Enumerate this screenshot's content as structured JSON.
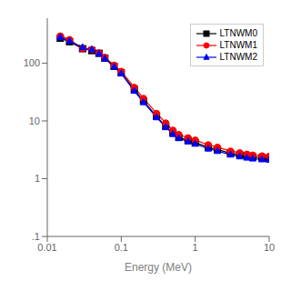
{
  "chart_data": {
    "type": "line",
    "x_label": "Energy (MeV)",
    "log": true,
    "grid": false,
    "legend": "upper right",
    "xlim": [
      0.01,
      10
    ],
    "ylim": [
      0.1,
      600
    ],
    "xticks": [
      0.01,
      0.1,
      1,
      10
    ],
    "yticks": [
      {
        "value": 0.1,
        "label": ".1"
      },
      1,
      10,
      100
    ],
    "x": [
      0.015,
      0.02,
      0.03,
      0.04,
      0.05,
      0.06,
      0.08,
      0.1,
      0.15,
      0.2,
      0.3,
      0.4,
      0.5,
      0.6,
      0.8,
      1.0,
      1.5,
      2.0,
      3.0,
      4.0,
      5.0,
      6.0,
      8.0,
      10.0
    ],
    "series": [
      {
        "name": "LTNWM0",
        "color": "black",
        "marker": "square",
        "line_style": "solid",
        "values": [
          270,
          235,
          178,
          165,
          148,
          122,
          88,
          68,
          35,
          22,
          12,
          8.0,
          6.2,
          5.2,
          4.6,
          4.2,
          3.5,
          3.2,
          2.75,
          2.58,
          2.45,
          2.38,
          2.3,
          2.27
        ]
      },
      {
        "name": "LTNWM1",
        "color": "red",
        "marker": "circle",
        "line_style": "solid",
        "values": [
          295,
          255,
          178,
          172,
          150,
          126,
          92,
          72,
          38,
          24.5,
          13.5,
          9.2,
          6.9,
          5.8,
          5.1,
          4.65,
          3.85,
          3.5,
          3.0,
          2.8,
          2.65,
          2.56,
          2.48,
          2.44
        ]
      },
      {
        "name": "LTNWM2",
        "color": "blue",
        "marker": "triangle",
        "line_style": "solid",
        "values": [
          280,
          242,
          188,
          172,
          146,
          120,
          86,
          66,
          33,
          21,
          11.5,
          7.8,
          5.9,
          5.0,
          4.4,
          4.0,
          3.3,
          3.0,
          2.6,
          2.42,
          2.3,
          2.22,
          2.15,
          2.12
        ]
      }
    ]
  }
}
